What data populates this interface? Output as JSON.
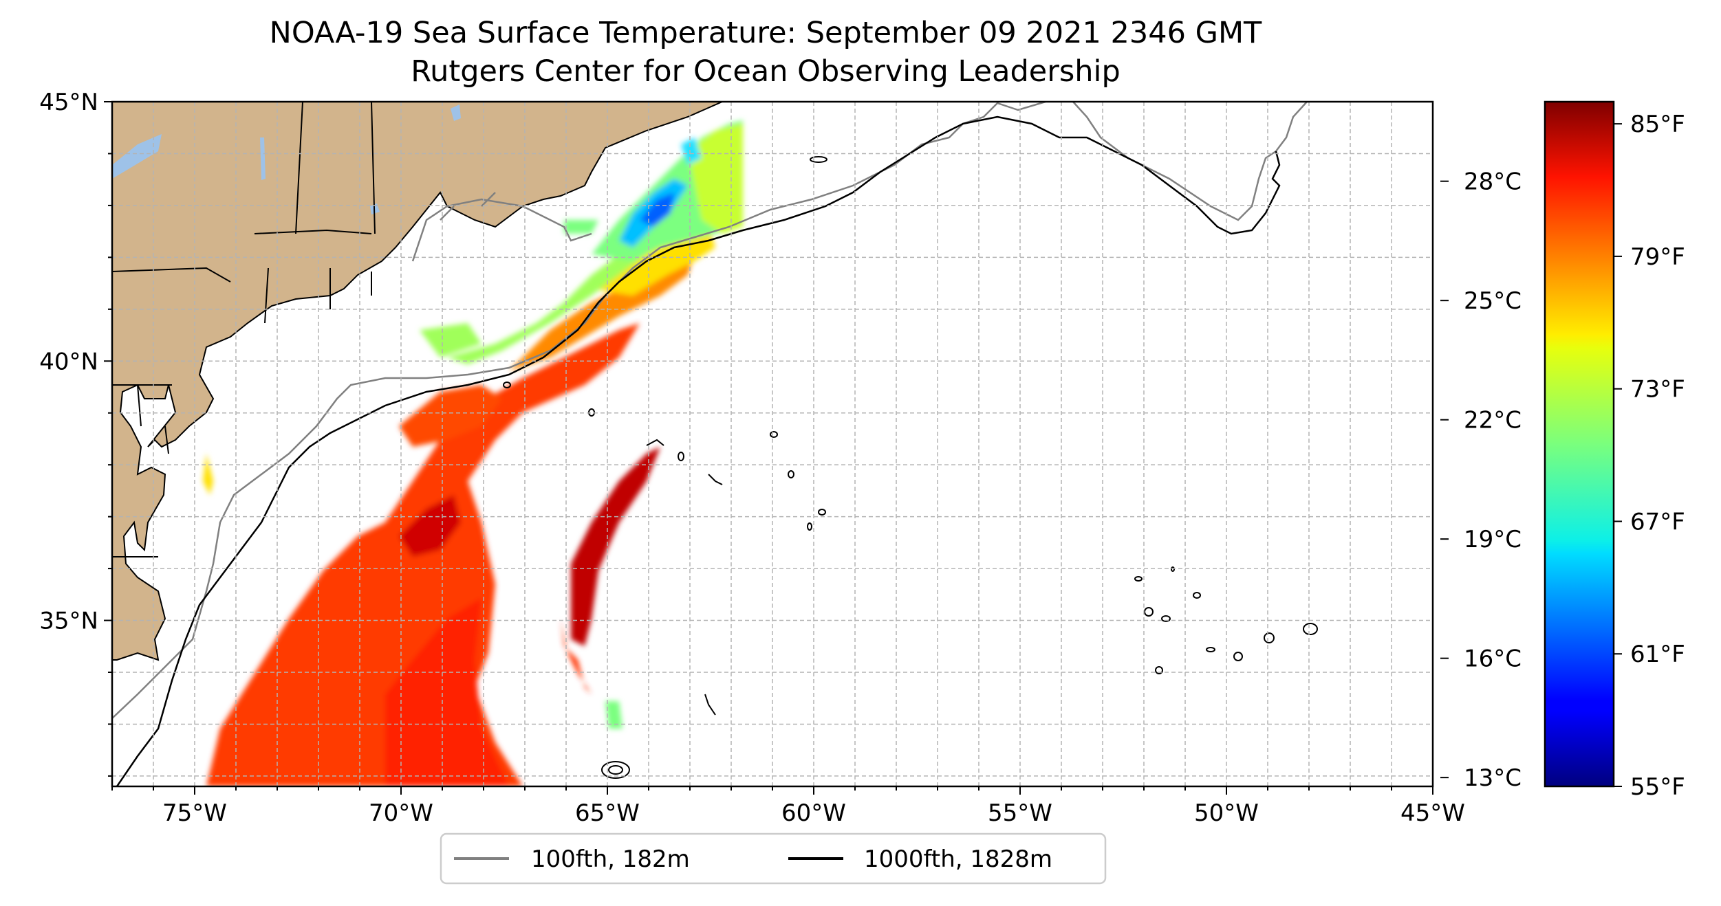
{
  "title": {
    "line1": "NOAA-19 Sea Surface Temperature: September 09 2021 2346 GMT",
    "line2": "Rutgers Center for Ocean Observing Leadership"
  },
  "map": {
    "lon_range": [
      -77,
      -45
    ],
    "lat_range": [
      31.8,
      45
    ],
    "lon_ticks": [
      {
        "value": -75,
        "label": "75°W"
      },
      {
        "value": -70,
        "label": "70°W"
      },
      {
        "value": -65,
        "label": "65°W"
      },
      {
        "value": -60,
        "label": "60°W"
      },
      {
        "value": -55,
        "label": "55°W"
      },
      {
        "value": -50,
        "label": "50°W"
      },
      {
        "value": -45,
        "label": "45°W"
      }
    ],
    "lat_ticks": [
      {
        "value": 45,
        "label": "45°N"
      },
      {
        "value": 40,
        "label": "40°N"
      },
      {
        "value": 35,
        "label": "35°N"
      }
    ],
    "land_color": "#d2b48c",
    "water_body_color": "#9ec2e8",
    "grid": true
  },
  "legend": {
    "items": [
      {
        "label": "100fth, 182m",
        "color": "#808080"
      },
      {
        "label": "1000fth, 1828m",
        "color": "#000000"
      }
    ]
  },
  "colorbar": {
    "colormap": "jet",
    "range_f": [
      55,
      86
    ],
    "fahrenheit_ticks": [
      "85°F",
      "79°F",
      "73°F",
      "67°F",
      "61°F",
      "55°F"
    ],
    "fahrenheit_values": [
      85,
      79,
      73,
      67,
      61,
      55
    ],
    "celsius_ticks": [
      "28°C",
      "25°C",
      "22°C",
      "19°C",
      "16°C",
      "13°C"
    ],
    "celsius_values": [
      28,
      25,
      22,
      19,
      16,
      13
    ]
  }
}
